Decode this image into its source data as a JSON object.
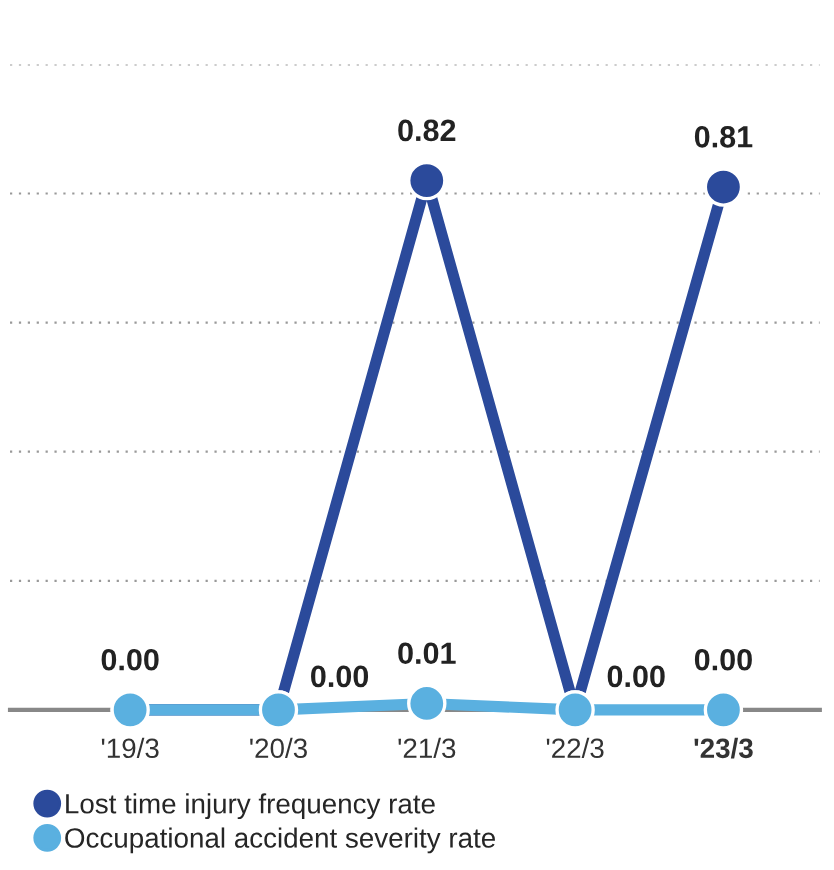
{
  "chart_data": {
    "type": "line",
    "categories": [
      "'19/3",
      "'20/3",
      "'21/3",
      "'22/3",
      "'23/3"
    ],
    "series": [
      {
        "name": "Lost time injury frequency rate",
        "color": "#2b4a9b",
        "values": [
          0.0,
          0.0,
          0.82,
          0.0,
          0.81
        ],
        "value_labels": [
          "0.00",
          null,
          "0.82",
          null,
          "0.81"
        ]
      },
      {
        "name": "Occupational accident severity rate",
        "color": "#5ab0e0",
        "values": [
          0.0,
          0.0,
          0.01,
          0.0,
          0.0
        ],
        "value_labels": [
          null,
          "0.00",
          "0.01",
          "0.00",
          "0.00"
        ]
      }
    ],
    "ylim": [
      0,
      1.0
    ],
    "yticks": [
      {
        "value": 0.2,
        "label": null
      },
      {
        "value": 0.4,
        "label": null
      },
      {
        "value": 0.6,
        "label": null
      },
      {
        "value": 0.8,
        "label": null
      },
      {
        "value": 1.0,
        "label": null
      }
    ],
    "tick_labels": "x",
    "grid": "y",
    "marker": "circle",
    "line_style": "solid",
    "legend": "bottom"
  }
}
